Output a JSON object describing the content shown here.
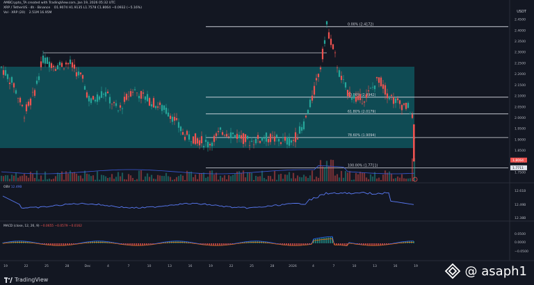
{
  "header": {
    "line1": "AMBCrypto_TA created with TradingView.com, Jan 19, 2026 05:32 UTC",
    "symbol": "XRP / TetherUS · 4h · Binance",
    "ohlc": "O1.9074  H1.9135  L1.7578  C1.8064  −0.0932 (−5.16%)",
    "vol_label": "Vol · XRP (20)",
    "vol_values": "2.51M  16.95M"
  },
  "price_axis": {
    "currency": "USDT",
    "ticks": [
      "2.4500",
      "2.4000",
      "2.3500",
      "2.3000",
      "2.2500",
      "2.2000",
      "2.1500",
      "2.1000",
      "2.0500",
      "2.0000",
      "1.9500",
      "1.9000",
      "1.8500",
      "1.8000",
      "1.7500"
    ],
    "last_price": "1.8064",
    "last_price_2": "1.7711"
  },
  "fib_levels": [
    {
      "label": "0.00% (2.4172)",
      "price": 2.4172
    },
    {
      "label": "50.00% (2.0942)",
      "price": 2.0942
    },
    {
      "label": "61.80% (2.0179)",
      "price": 2.0179
    },
    {
      "label": "78.60% (1.9094)",
      "price": 1.9094
    },
    {
      "label": "100.00% (1.7711)",
      "price": 1.7711
    }
  ],
  "obv": {
    "label": "OBV",
    "value": "12.49B",
    "ticks": [
      "12.61B",
      "12.49B",
      "12.38B"
    ]
  },
  "macd": {
    "label": "MACD (close, 12, 26, 9)",
    "values": "−0.0655  −0.0579  −0.0162",
    "ticks": [
      "0.0500",
      "0.0000",
      "−0.0500"
    ]
  },
  "time_axis": [
    "19",
    "22",
    "25",
    "28",
    "Dec",
    "4",
    "7",
    "10",
    "13",
    "16",
    "19",
    "22",
    "25",
    "28",
    "2026",
    "4",
    "7",
    "10",
    "13",
    "16",
    "19"
  ],
  "watermark": "@ asaph1",
  "brand": "TradingView",
  "colors": {
    "bg": "#131722",
    "zone": "#0e5a63",
    "up": "#26a69a",
    "down": "#ef5350"
  }
}
